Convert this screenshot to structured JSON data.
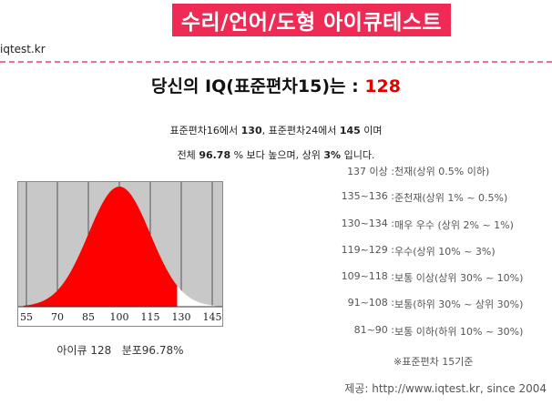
{
  "header": {
    "title": "수리/언어/도형 아이큐테스트",
    "site": "iqtest.kr"
  },
  "result": {
    "prefix": "당신의 IQ(표준편차15)는 : ",
    "score": "128"
  },
  "summary": {
    "line1_a": "표준편차16에서 ",
    "line1_b": "130",
    "line1_c": ", 표준편차24에서 ",
    "line1_d": "145",
    "line1_e": " 이며",
    "line2_a": "전체 ",
    "line2_b": "96.78",
    "line2_c": " % 보다 높으며, 상위 ",
    "line2_d": "3%",
    "line2_e": " 입니다."
  },
  "ranges": [
    {
      "range": "137 이상 :",
      "desc": "천재(상위 0.5% 이하)"
    },
    {
      "range": "135~136 :",
      "desc": "준천재(상위 1% ~ 0.5%)"
    },
    {
      "range": "130~134 :",
      "desc": "매우 우수 (상위 2% ~ 1%)"
    },
    {
      "range": "119~129 :",
      "desc": "우수(상위 10% ~ 3%)"
    },
    {
      "range": "109~118 :",
      "desc": "보통 이상(상위 30% ~ 10%)"
    },
    {
      "range": "91~108 :",
      "desc": "보통(하위 30% ~ 상위 30%)"
    },
    {
      "range": "81~90 :",
      "desc": "보통 이하(하위 10% ~ 30%)"
    }
  ],
  "note": "※표준편차 15기준",
  "chart_data": {
    "type": "area",
    "mean": 100,
    "sd": 15,
    "xlim": [
      55,
      145
    ],
    "ticks": [
      "55",
      "70",
      "85",
      "100",
      "115",
      "130",
      "145"
    ],
    "shaded_up_to": 128,
    "fill_color": "#ff0000",
    "unshaded_color": "#ffffff",
    "background_color": "#c8c8c8"
  },
  "caption": {
    "label": "아이큐 128",
    "percent": "분포96.78%"
  },
  "source": "제공: http://www.iqtest.kr, since 2004"
}
